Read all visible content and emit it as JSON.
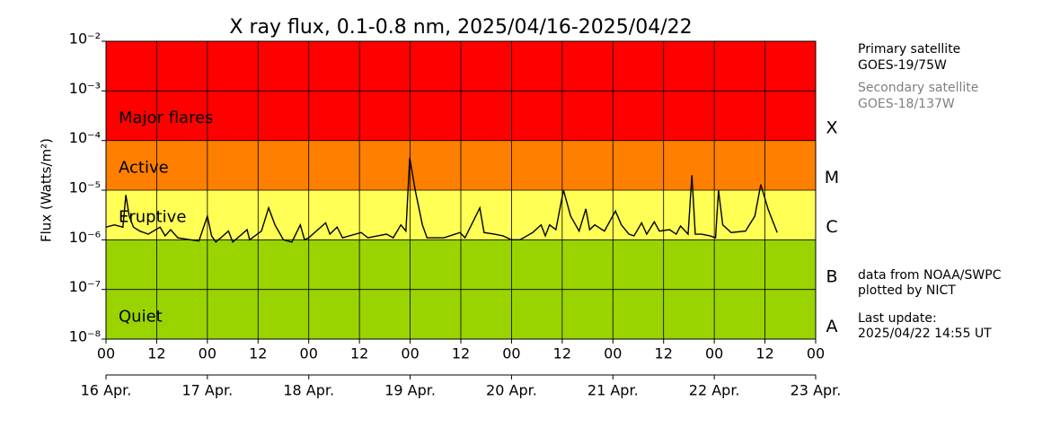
{
  "chart_data": {
    "type": "line",
    "title": "X ray flux, 0.1-0.8 nm, 2025/04/16-2025/04/22",
    "y_label": "Flux (Watts/m²)",
    "log_y": true,
    "grid": true,
    "color": "#000000",
    "xlim": [
      0,
      168
    ],
    "ylim": [
      1e-08,
      0.01
    ],
    "xticks": [
      {
        "value": 0,
        "label": "00"
      },
      12,
      {
        "value": 24,
        "label": "00"
      },
      {
        "value": 36,
        "label": "12"
      },
      {
        "value": 48,
        "label": "00"
      },
      {
        "value": 60,
        "label": "12"
      },
      {
        "value": 72,
        "label": "00"
      },
      {
        "value": 84,
        "label": "12"
      },
      {
        "value": 96,
        "label": "00"
      },
      {
        "value": 108,
        "label": "12"
      },
      {
        "value": 120,
        "label": "00"
      },
      {
        "value": 132,
        "label": "12"
      },
      {
        "value": 144,
        "label": "00"
      },
      {
        "value": 156,
        "label": "12"
      },
      {
        "value": 168,
        "label": "00"
      }
    ],
    "date_ticks": [
      {
        "value": 0,
        "label": "16 Apr."
      },
      {
        "value": 24,
        "label": "17 Apr."
      },
      {
        "value": 48,
        "label": "18 Apr."
      },
      {
        "value": 72,
        "label": "19 Apr."
      },
      {
        "value": 96,
        "label": "20 Apr."
      },
      {
        "value": 120,
        "label": "21 Apr."
      },
      {
        "value": 144,
        "label": "22 Apr."
      },
      {
        "value": 168,
        "label": "23 Apr."
      }
    ],
    "yticks": [
      {
        "value": 1e-08,
        "label": "10⁻⁸"
      },
      {
        "value": 1e-07,
        "label": "10⁻⁷"
      },
      {
        "value": 1e-06,
        "label": "10⁻⁶"
      },
      {
        "value": 1e-05,
        "label": "10⁻⁵"
      },
      {
        "value": 0.0001,
        "label": "10⁻⁴"
      },
      {
        "value": 0.001,
        "label": "10⁻³"
      },
      {
        "value": 0.01,
        "label": "10⁻²"
      }
    ],
    "bands": [
      {
        "label": "Major flares",
        "range": [
          0.0001,
          0.01
        ],
        "color": "#ff0000"
      },
      {
        "label": "Active",
        "range": [
          1e-05,
          0.0001
        ],
        "color": "#ff7f00"
      },
      {
        "label": "Eruptive",
        "range": [
          1e-06,
          1e-05
        ],
        "color": "#ffff55"
      },
      {
        "label": "Quiet",
        "range": [
          1e-08,
          1e-06
        ],
        "color": "#99d400"
      }
    ],
    "classes": [
      {
        "label": "X",
        "range": [
          0.0001,
          0.001
        ]
      },
      {
        "label": "M",
        "range": [
          1e-05,
          0.0001
        ]
      },
      {
        "label": "C",
        "range": [
          1e-06,
          1e-05
        ]
      },
      {
        "label": "B",
        "range": [
          1e-07,
          1e-06
        ]
      },
      {
        "label": "A",
        "range": [
          1e-08,
          1e-07
        ]
      }
    ],
    "x": [
      0,
      2,
      4,
      4.7,
      5.5,
      6.5,
      8,
      10,
      12.8,
      14,
      15.3,
      17,
      20,
      22,
      24,
      25,
      26,
      29,
      30,
      33.4,
      34,
      36.8,
      38.5,
      40,
      42,
      44,
      46,
      47,
      48,
      52,
      53,
      54.7,
      56,
      60.4,
      62,
      66.4,
      68,
      69.8,
      71,
      71.9,
      73.2,
      74.9,
      76,
      80,
      83.8,
      85,
      88.5,
      89.5,
      92,
      94,
      96,
      98,
      101,
      103,
      104,
      105,
      106.5,
      108.3,
      110,
      112,
      113.6,
      114.5,
      115.7,
      118,
      120.6,
      122,
      123.8,
      125,
      126.8,
      128,
      129.8,
      131,
      133.4,
      135,
      136,
      137.8,
      138.7,
      139.5,
      141,
      143,
      144.3,
      145,
      146,
      148,
      151.4,
      153.6,
      155,
      156.8,
      158.9
    ],
    "values": [
      1.8e-06,
      2e-06,
      1.8e-06,
      8e-06,
      3e-06,
      1.8e-06,
      1.5e-06,
      1.3e-06,
      1.8e-06,
      1.2e-06,
      1.6e-06,
      1.1e-06,
      1e-06,
      9.5e-07,
      3e-06,
      1.2e-06,
      9e-07,
      1.5e-06,
      9e-07,
      1.6e-06,
      1e-06,
      1.5e-06,
      4.4e-06,
      2e-06,
      1e-06,
      9e-07,
      2e-06,
      1e-06,
      1.1e-06,
      2.2e-06,
      1.3e-06,
      1.8e-06,
      1.1e-06,
      1.4e-06,
      1.1e-06,
      1.3e-06,
      1.1e-06,
      2e-06,
      1.5e-06,
      4.5e-05,
      1e-05,
      2e-06,
      1.1e-06,
      1.1e-06,
      1.4e-06,
      1.1e-06,
      4.4e-06,
      1.4e-06,
      1.3e-06,
      1.2e-06,
      1e-06,
      1e-06,
      1.4e-06,
      2e-06,
      1.2e-06,
      2e-06,
      1.6e-06,
      1e-05,
      3e-06,
      1.5e-06,
      4.2e-06,
      1.6e-06,
      2e-06,
      1.5e-06,
      3.8e-06,
      2e-06,
      1.3e-06,
      1.2e-06,
      2.2e-06,
      1.3e-06,
      2.3e-06,
      1.5e-06,
      1.6e-06,
      1.3e-06,
      1.9e-06,
      1.3e-06,
      2e-05,
      1.3e-06,
      1.3e-06,
      1.2e-06,
      1.1e-06,
      1e-05,
      2e-06,
      1.4e-06,
      1.5e-06,
      3e-06,
      1.3e-05,
      4e-06,
      1.4e-06
    ],
    "side_text": {
      "primary_label": "Primary satellite",
      "primary": "GOES-19/75W",
      "secondary_label": "Secondary satellite",
      "secondary": "GOES-18/137W",
      "source": "data from NOAA/SWPC",
      "plotted": "plotted by NICT",
      "update_label": "Last update:",
      "update": "2025/04/22 14:55 UT"
    }
  }
}
